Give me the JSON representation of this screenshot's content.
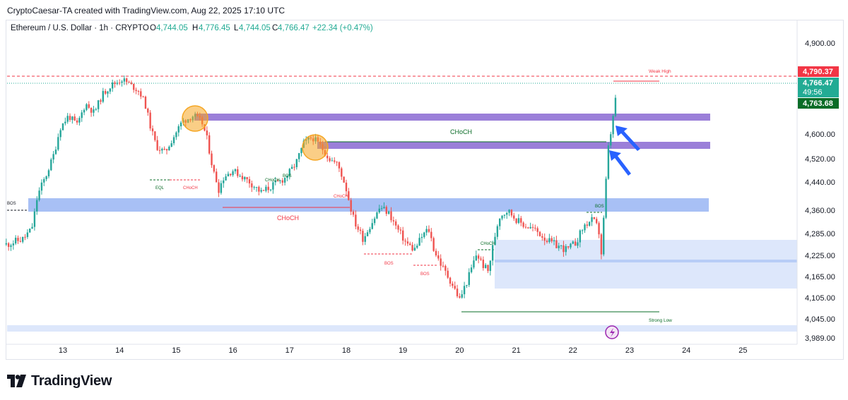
{
  "header": {
    "credit": "CryptoCaesar-TA created with TradingView.com, Aug 22, 2025 17:10 UTC"
  },
  "legend": {
    "symbol": "Ethereum / U.S. Dollar · 1h · CRYPTO",
    "o_label": "O",
    "o_value": "4,744.05",
    "h_label": "H",
    "h_value": "4,776.45",
    "l_label": "L",
    "l_value": "4,744.05",
    "c_label": "C",
    "c_value": "4,766.47",
    "change": "+22.34 (+0.47%)"
  },
  "price_axis": {
    "ticks": [
      "4,900.00",
      "4,600.00",
      "4,520.00",
      "4,440.00",
      "4,360.00",
      "4,285.00",
      "4,225.00",
      "4,165.00",
      "4,105.00",
      "4,045.00",
      "3,989.00"
    ],
    "labels": {
      "weak_high_price": "4,790.37",
      "last_price": "4,766.47",
      "countdown": "49:56",
      "ask_price": "4,763.68"
    }
  },
  "time_axis": {
    "ticks": [
      "13",
      "14",
      "15",
      "16",
      "17",
      "18",
      "19",
      "20",
      "21",
      "22",
      "23",
      "24",
      "25"
    ]
  },
  "annotations": {
    "weak_high": "Weak High",
    "strong_low": "Strong Low",
    "choch_big_right": "CHoCH",
    "choch_big_left": "CHoCH",
    "bos_left": "BOS",
    "eql": "EQL",
    "choch_small_1": "CHoCH",
    "choch_small_2": "CHoCH",
    "bos_mid": "BOS",
    "choch_small_3": "CHoCH",
    "bos_low_1": "BOS",
    "bos_low_2": "BOS",
    "choch_small_4": "CHoCH",
    "bos_right": "BOS"
  },
  "footer": {
    "brand": "TradingView"
  },
  "colors": {
    "up": "#26a69a",
    "down": "#ef5350",
    "bear_price": "#f23645",
    "bull_price": "#22ab94",
    "ask_price": "#0a6c27",
    "zone_purple": "#9b7fd9",
    "zone_blue": "#a8c0f5",
    "zone_lightblue": "#dde7fb",
    "circle": "#f5a623",
    "arrow": "#2962ff"
  },
  "chart_data": {
    "type": "candlestick",
    "symbol": "ETH/USD",
    "interval": "1h",
    "ylim": [
      3989,
      4930
    ],
    "x_ticks": [
      "13",
      "14",
      "15",
      "16",
      "17",
      "18",
      "19",
      "20",
      "21",
      "22",
      "23",
      "24",
      "25"
    ],
    "path_points": [
      [
        12.0,
        4255
      ],
      [
        12.3,
        4270
      ],
      [
        12.45,
        4300
      ],
      [
        12.55,
        4400
      ],
      [
        12.7,
        4460
      ],
      [
        12.85,
        4540
      ],
      [
        12.95,
        4620
      ],
      [
        13.1,
        4660
      ],
      [
        13.25,
        4630
      ],
      [
        13.4,
        4700
      ],
      [
        13.55,
        4670
      ],
      [
        13.7,
        4730
      ],
      [
        13.85,
        4760
      ],
      [
        14.05,
        4780
      ],
      [
        14.2,
        4760
      ],
      [
        14.35,
        4740
      ],
      [
        14.45,
        4700
      ],
      [
        14.55,
        4620
      ],
      [
        14.65,
        4560
      ],
      [
        14.8,
        4540
      ],
      [
        14.95,
        4590
      ],
      [
        15.1,
        4640
      ],
      [
        15.3,
        4660
      ],
      [
        15.45,
        4640
      ],
      [
        15.55,
        4580
      ],
      [
        15.65,
        4480
      ],
      [
        15.75,
        4420
      ],
      [
        15.85,
        4460
      ],
      [
        16.0,
        4480
      ],
      [
        16.15,
        4460
      ],
      [
        16.3,
        4440
      ],
      [
        16.5,
        4410
      ],
      [
        16.7,
        4430
      ],
      [
        16.9,
        4450
      ],
      [
        17.1,
        4500
      ],
      [
        17.25,
        4570
      ],
      [
        17.4,
        4590
      ],
      [
        17.55,
        4560
      ],
      [
        17.7,
        4520
      ],
      [
        17.85,
        4500
      ],
      [
        18.0,
        4420
      ],
      [
        18.15,
        4320
      ],
      [
        18.3,
        4270
      ],
      [
        18.45,
        4320
      ],
      [
        18.6,
        4370
      ],
      [
        18.75,
        4350
      ],
      [
        18.9,
        4300
      ],
      [
        19.05,
        4260
      ],
      [
        19.2,
        4240
      ],
      [
        19.35,
        4280
      ],
      [
        19.45,
        4300
      ],
      [
        19.55,
        4240
      ],
      [
        19.7,
        4190
      ],
      [
        19.85,
        4150
      ],
      [
        20.0,
        4100
      ],
      [
        20.15,
        4160
      ],
      [
        20.3,
        4230
      ],
      [
        20.4,
        4200
      ],
      [
        20.5,
        4180
      ],
      [
        20.6,
        4260
      ],
      [
        20.7,
        4340
      ],
      [
        20.85,
        4360
      ],
      [
        21.0,
        4330
      ],
      [
        21.15,
        4310
      ],
      [
        21.3,
        4300
      ],
      [
        21.45,
        4280
      ],
      [
        21.6,
        4260
      ],
      [
        21.75,
        4250
      ],
      [
        21.9,
        4240
      ],
      [
        22.05,
        4260
      ],
      [
        22.2,
        4310
      ],
      [
        22.35,
        4330
      ],
      [
        22.45,
        4300
      ],
      [
        22.5,
        4230
      ],
      [
        22.55,
        4350
      ],
      [
        22.62,
        4550
      ],
      [
        22.7,
        4640
      ],
      [
        22.78,
        4766
      ]
    ]
  }
}
